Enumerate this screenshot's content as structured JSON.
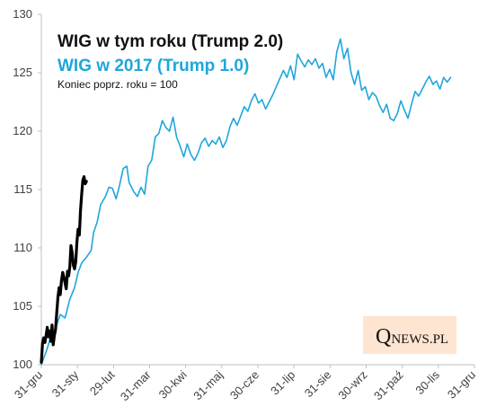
{
  "chart_data": {
    "type": "line",
    "title": "WIG w tym roku (Trump 2.0)",
    "subtitle": "WIG w 2017 (Trump 1.0)",
    "note": "Koniec poprz. roku = 100",
    "xlabel": "",
    "ylabel": "",
    "ylim": [
      100,
      130
    ],
    "yticks": [
      "100",
      "105",
      "110",
      "115",
      "120",
      "125",
      "130"
    ],
    "xticks": [
      "31-gru",
      "31-sty",
      "29-lut",
      "31-mar",
      "30-kwi",
      "31-maj",
      "30-cze",
      "31-lip",
      "31-sie",
      "30-wrz",
      "31-paź",
      "30-lis",
      "31-gru"
    ],
    "grid": false,
    "legend": "top-left",
    "series": [
      {
        "name": "WIG w tym roku (Trump 2.0)",
        "color": "#000000",
        "points": [
          [
            0,
            100.2
          ],
          [
            1,
            101.8
          ],
          [
            2,
            102.3
          ],
          [
            3,
            101.9
          ],
          [
            4,
            102.5
          ],
          [
            5,
            103.2
          ],
          [
            6,
            102.4
          ],
          [
            7,
            102.9
          ],
          [
            8,
            102.0
          ],
          [
            9,
            103.4
          ],
          [
            10,
            101.7
          ],
          [
            11,
            102.5
          ],
          [
            12,
            103.0
          ],
          [
            13,
            104.5
          ],
          [
            14,
            105.8
          ],
          [
            15,
            106.6
          ],
          [
            16,
            106.0
          ],
          [
            17,
            107.2
          ],
          [
            18,
            107.9
          ],
          [
            19,
            107.5
          ],
          [
            20,
            107.0
          ],
          [
            21,
            106.5
          ],
          [
            22,
            108.0
          ],
          [
            23,
            107.6
          ],
          [
            24,
            108.4
          ],
          [
            25,
            110.2
          ],
          [
            26,
            109.6
          ],
          [
            27,
            108.5
          ],
          [
            28,
            108.2
          ],
          [
            29,
            108.8
          ],
          [
            30,
            110.5
          ],
          [
            31,
            111.6
          ],
          [
            32,
            111.1
          ],
          [
            33,
            113.2
          ],
          [
            34,
            114.6
          ],
          [
            35,
            115.8
          ],
          [
            36,
            116.1
          ],
          [
            37,
            115.5
          ],
          [
            38,
            115.7
          ]
        ]
      },
      {
        "name": "WIG w 2017 (Trump 1.0)",
        "color": "#1fa6dc",
        "points": [
          [
            0,
            100.0
          ],
          [
            4,
            101.1
          ],
          [
            8,
            102.4
          ],
          [
            12,
            103.1
          ],
          [
            16,
            104.3
          ],
          [
            20,
            104.0
          ],
          [
            24,
            105.6
          ],
          [
            28,
            106.6
          ],
          [
            31,
            107.9
          ],
          [
            34,
            108.7
          ],
          [
            38,
            109.2
          ],
          [
            42,
            109.8
          ],
          [
            44,
            111.3
          ],
          [
            47,
            112.2
          ],
          [
            50,
            113.7
          ],
          [
            54,
            114.4
          ],
          [
            57,
            115.2
          ],
          [
            60,
            115.1
          ],
          [
            63,
            114.2
          ],
          [
            66,
            115.4
          ],
          [
            69,
            116.8
          ],
          [
            72,
            117.0
          ],
          [
            74,
            115.6
          ],
          [
            78,
            114.8
          ],
          [
            81,
            114.4
          ],
          [
            84,
            115.2
          ],
          [
            87,
            114.6
          ],
          [
            90,
            117.0
          ],
          [
            93,
            117.5
          ],
          [
            96,
            119.5
          ],
          [
            99,
            119.8
          ],
          [
            102,
            120.9
          ],
          [
            105,
            120.3
          ],
          [
            108,
            120.0
          ],
          [
            111,
            121.2
          ],
          [
            114,
            119.5
          ],
          [
            117,
            118.7
          ],
          [
            120,
            117.8
          ],
          [
            123,
            118.9
          ],
          [
            126,
            118.0
          ],
          [
            129,
            117.5
          ],
          [
            132,
            118.1
          ],
          [
            135,
            119.0
          ],
          [
            138,
            119.4
          ],
          [
            141,
            118.7
          ],
          [
            144,
            119.2
          ],
          [
            147,
            118.9
          ],
          [
            150,
            119.5
          ],
          [
            153,
            118.6
          ],
          [
            156,
            119.2
          ],
          [
            159,
            120.4
          ],
          [
            162,
            121.1
          ],
          [
            165,
            120.5
          ],
          [
            168,
            121.3
          ],
          [
            171,
            122.1
          ],
          [
            174,
            121.7
          ],
          [
            177,
            122.6
          ],
          [
            180,
            123.2
          ],
          [
            183,
            122.4
          ],
          [
            186,
            122.7
          ],
          [
            189,
            121.9
          ],
          [
            192,
            122.5
          ],
          [
            195,
            123.1
          ],
          [
            198,
            123.8
          ],
          [
            201,
            124.5
          ],
          [
            204,
            125.2
          ],
          [
            207,
            124.6
          ],
          [
            210,
            125.6
          ],
          [
            213,
            124.4
          ],
          [
            216,
            126.6
          ],
          [
            219,
            126.0
          ],
          [
            222,
            125.5
          ],
          [
            225,
            126.1
          ],
          [
            228,
            125.7
          ],
          [
            231,
            126.2
          ],
          [
            234,
            125.4
          ],
          [
            237,
            125.8
          ],
          [
            240,
            124.6
          ],
          [
            243,
            125.3
          ],
          [
            246,
            124.4
          ],
          [
            249,
            126.8
          ],
          [
            252,
            127.9
          ],
          [
            255,
            126.2
          ],
          [
            258,
            127.1
          ],
          [
            261,
            125.0
          ],
          [
            264,
            124.0
          ],
          [
            267,
            125.2
          ],
          [
            270,
            123.5
          ],
          [
            273,
            123.8
          ],
          [
            276,
            122.7
          ],
          [
            279,
            123.3
          ],
          [
            282,
            123.0
          ],
          [
            285,
            122.2
          ],
          [
            288,
            121.6
          ],
          [
            291,
            122.3
          ],
          [
            294,
            121.1
          ],
          [
            297,
            120.9
          ],
          [
            300,
            121.5
          ],
          [
            303,
            122.6
          ],
          [
            306,
            121.8
          ],
          [
            309,
            121.1
          ],
          [
            312,
            122.3
          ],
          [
            315,
            123.4
          ],
          [
            318,
            123.0
          ],
          [
            321,
            123.6
          ],
          [
            324,
            124.2
          ],
          [
            327,
            124.7
          ],
          [
            330,
            124.0
          ],
          [
            333,
            124.3
          ],
          [
            336,
            123.6
          ],
          [
            339,
            124.6
          ],
          [
            342,
            124.2
          ],
          [
            345,
            124.6
          ]
        ]
      }
    ]
  },
  "watermark": {
    "q": "Q",
    "rest": "NEWS.PL",
    "background": "#fde5d2"
  }
}
